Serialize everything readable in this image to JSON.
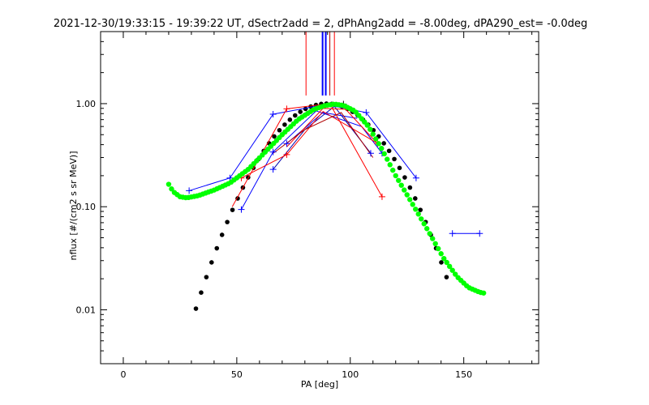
{
  "chart_data": {
    "type": "line",
    "title": "2021-12-30/19:33:15 - 19:39:22 UT, dSectr2add = 2, dPhAng2add = -8.00deg, dPA290_est=  -0.0deg",
    "xlabel": "PA [deg]",
    "ylabel": "nflux [#/(cm2 s sr MeV)]",
    "xlim": [
      -10,
      183
    ],
    "ylim": [
      0.003,
      5.0
    ],
    "y_scale": "log",
    "x_ticks": [
      0,
      50,
      100,
      150
    ],
    "x_tick_labels": [
      "0",
      "50",
      "100",
      "150"
    ],
    "y_ticks": [
      0.01,
      0.1,
      1.0
    ],
    "y_tick_labels": [
      "0.01",
      "0.10",
      "1.00"
    ],
    "grid": false,
    "colors": {
      "red": "#ff0000",
      "blue": "#0000ff",
      "black": "#000000",
      "green": "#00ff00",
      "dark_red": "#b00000",
      "dark_blue": "#0000b0"
    },
    "vertical_lines": [
      {
        "x": 80.5,
        "color": "#ff0000",
        "ymin": 1.2,
        "width": 1
      },
      {
        "x": 87.8,
        "color": "#0000ff",
        "ymin": 1.2,
        "width": 2
      },
      {
        "x": 89.2,
        "color": "#0000ff",
        "ymin": 1.2,
        "width": 2
      },
      {
        "x": 91.0,
        "color": "#b00000",
        "ymin": 1.2,
        "width": 1
      },
      {
        "x": 93.0,
        "color": "#ff0000",
        "ymin": 1.2,
        "width": 1
      }
    ],
    "series": [
      {
        "color": "#0000ff",
        "width": 1,
        "points": [
          [
            29,
            0.143
          ],
          [
            47,
            0.19
          ],
          [
            66,
            0.79
          ],
          [
            89,
            0.98
          ],
          [
            107,
            0.82
          ],
          [
            129,
            0.19
          ]
        ]
      },
      {
        "color": "#0000ff",
        "width": 1,
        "points": [
          [
            52,
            0.094
          ],
          [
            66,
            0.34
          ],
          [
            85,
            0.85
          ],
          [
            105,
            0.6
          ],
          [
            114,
            0.33
          ]
        ]
      },
      {
        "color": "#0000b0",
        "width": 1,
        "points": [
          [
            66,
            0.23
          ],
          [
            80,
            0.56
          ],
          [
            93,
            0.94
          ],
          [
            109,
            0.33
          ]
        ]
      },
      {
        "color": "#0000ff",
        "width": 1,
        "points": [
          [
            72,
            0.41
          ],
          [
            88,
            0.82
          ],
          [
            103,
            0.72
          ]
        ]
      },
      {
        "color": "#0000ff",
        "width": 1,
        "points": [
          [
            145,
            0.055
          ],
          [
            157,
            0.055
          ]
        ]
      },
      {
        "color": "#ff0000",
        "width": 1,
        "points": [
          [
            48,
            0.1
          ],
          [
            72,
            0.89
          ],
          [
            91,
            1.0
          ],
          [
            114,
            0.125
          ]
        ]
      },
      {
        "color": "#ff0000",
        "width": 1,
        "points": [
          [
            52,
            0.19
          ],
          [
            72,
            0.32
          ],
          [
            88,
            0.84
          ],
          [
            113,
            0.4
          ]
        ]
      },
      {
        "color": "#ff0000",
        "width": 1,
        "points": [
          [
            72,
            0.38
          ],
          [
            88,
            0.9
          ],
          [
            98,
            0.88
          ],
          [
            112,
            0.41
          ]
        ]
      },
      {
        "color": "#b00000",
        "width": 1,
        "points": [
          [
            66,
            0.33
          ],
          [
            80,
            0.56
          ],
          [
            96,
            0.82
          ],
          [
            110,
            0.3
          ]
        ]
      },
      {
        "color": "#000000",
        "width": 1,
        "points": [
          [
            88,
            0.93
          ],
          [
            97,
            0.99
          ]
        ]
      }
    ],
    "markers": [
      {
        "x": 29,
        "y": 0.143,
        "color": "#0000ff"
      },
      {
        "x": 47,
        "y": 0.19,
        "color": "#0000ff"
      },
      {
        "x": 66,
        "y": 0.79,
        "color": "#0000ff"
      },
      {
        "x": 107,
        "y": 0.82,
        "color": "#0000ff"
      },
      {
        "x": 129,
        "y": 0.19,
        "color": "#0000ff"
      },
      {
        "x": 52,
        "y": 0.094,
        "color": "#0000ff"
      },
      {
        "x": 66,
        "y": 0.34,
        "color": "#0000ff"
      },
      {
        "x": 114,
        "y": 0.33,
        "color": "#0000ff"
      },
      {
        "x": 66,
        "y": 0.23,
        "color": "#0000ff"
      },
      {
        "x": 109,
        "y": 0.33,
        "color": "#0000ff"
      },
      {
        "x": 72,
        "y": 0.41,
        "color": "#0000ff"
      },
      {
        "x": 145,
        "y": 0.055,
        "color": "#0000ff"
      },
      {
        "x": 157,
        "y": 0.055,
        "color": "#0000ff"
      },
      {
        "x": 52,
        "y": 0.19,
        "color": "#ff0000"
      },
      {
        "x": 72,
        "y": 0.32,
        "color": "#ff0000"
      },
      {
        "x": 72,
        "y": 0.89,
        "color": "#ff0000"
      },
      {
        "x": 114,
        "y": 0.125,
        "color": "#ff0000"
      },
      {
        "x": 112,
        "y": 0.41,
        "color": "#ff0000"
      },
      {
        "x": 97,
        "y": 0.99,
        "color": "#000000"
      }
    ],
    "black_fit": {
      "color": "#000000",
      "x_start": 32,
      "x_end": 144,
      "step": 2.3,
      "peak_x": 89.5,
      "peak_y": 1.0,
      "sigma_deg": 19.0
    },
    "green_curve": {
      "color": "#00ff00",
      "points": [
        [
          20,
          0.165
        ],
        [
          22,
          0.14
        ],
        [
          25,
          0.125
        ],
        [
          28,
          0.122
        ],
        [
          33,
          0.128
        ],
        [
          40,
          0.145
        ],
        [
          47,
          0.17
        ],
        [
          55,
          0.23
        ],
        [
          62,
          0.33
        ],
        [
          70,
          0.5
        ],
        [
          77,
          0.7
        ],
        [
          84,
          0.88
        ],
        [
          89,
          0.96
        ],
        [
          93,
          0.99
        ],
        [
          97,
          0.96
        ],
        [
          102,
          0.85
        ],
        [
          108,
          0.6
        ],
        [
          114,
          0.36
        ],
        [
          120,
          0.2
        ],
        [
          127,
          0.11
        ],
        [
          134,
          0.06
        ],
        [
          141,
          0.032
        ],
        [
          147,
          0.021
        ],
        [
          152,
          0.0165
        ],
        [
          157,
          0.0148
        ],
        [
          159,
          0.0145
        ]
      ]
    }
  }
}
